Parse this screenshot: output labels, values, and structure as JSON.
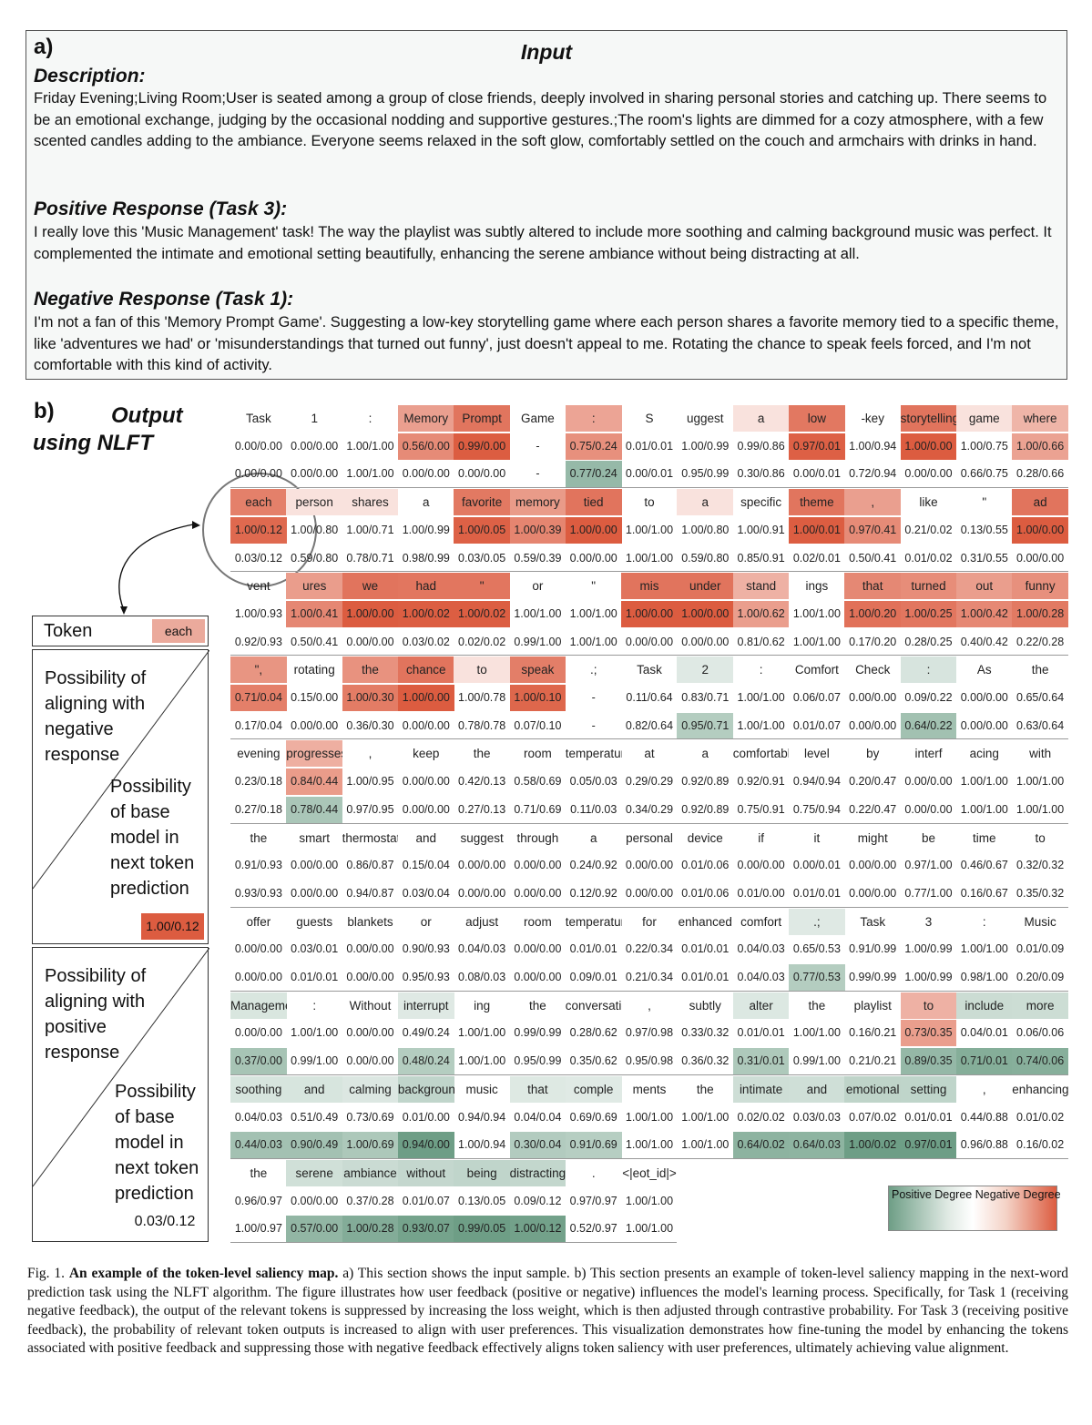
{
  "input_section": {
    "label": "a)",
    "title": "Input",
    "description_heading": "Description:",
    "description_text": "Friday Evening;Living Room;User is seated among a group of close friends, deeply involved in sharing personal stories and catching up. There seems to be an emotional exchange, judging by the occasional nodding and supportive gestures.;The room's lights are dimmed for a cozy atmosphere, with a few scented candles adding to the ambiance. Everyone seems relaxed in the soft glow, comfortably settled on the couch and armchairs with drinks in hand.",
    "positive_heading": "Positive Response (Task 3):",
    "positive_text": "I really love this 'Music Management' task! The way the playlist was subtly altered to include more soothing and calming background music was perfect. It complemented the intimate and emotional setting beautifully, enhancing the serene ambiance without being distracting at all.",
    "negative_heading": "Negative Response (Task 1):",
    "negative_text": "I'm not a fan of this 'Memory Prompt Game'. Suggesting a low-key storytelling game where each person shares a favorite memory tied to a specific theme, like 'adventures we had' or 'misunderstandings that turned out funny', just doesn't appeal to me. Rotating the chance to speak feels forced, and I'm not comfortable with this kind of activity."
  },
  "output_section": {
    "label": "b)",
    "title_line1": "Output",
    "title_line2": "using NLFT"
  },
  "legend": {
    "token_label": "Token",
    "token_example": "each",
    "negative_box_text": [
      "Possibility of",
      "aligning with",
      "negative",
      "response"
    ],
    "base_model_text": [
      "Possibility",
      "of base",
      "model in",
      "next token",
      "prediction"
    ],
    "negative_example_value": "1.00/0.12",
    "positive_box_text": [
      "Possibility of",
      "aligning with",
      "positive",
      "response"
    ],
    "positive_example_value": "0.03/0.12"
  },
  "color_scale": {
    "label": "Positive Degree Negative Degree",
    "positive_color": "#6e9e86",
    "negative_color": "#dc5c40"
  },
  "saliency_blocks": [
    {
      "tokens": [
        "Task",
        "1",
        ":",
        "Memory",
        "Prompt",
        "Game",
        ":",
        "S",
        "uggest",
        "a",
        "low",
        "-key",
        "storytelling",
        "game",
        "where"
      ],
      "neg": [
        "0.00/0.00",
        "0.00/0.00",
        "1.00/1.00",
        "0.56/0.00",
        "0.99/0.00",
        "-",
        "0.75/0.24",
        "0.01/0.01",
        "1.00/0.99",
        "0.99/0.86",
        "0.97/0.01",
        "1.00/0.94",
        "1.00/0.00",
        "1.00/0.75",
        "1.00/0.66"
      ],
      "pos": [
        "0.00/0.00",
        "0.00/0.00",
        "1.00/1.00",
        "0.00/0.00",
        "0.00/0.00",
        "-",
        "0.77/0.24",
        "0.00/0.01",
        "0.95/0.99",
        "0.30/0.86",
        "0.00/0.01",
        "0.72/0.94",
        "0.00/0.00",
        "0.66/0.75",
        "0.28/0.66"
      ]
    },
    {
      "tokens": [
        "each",
        "person",
        "shares",
        "a",
        "favorite",
        "memory",
        "tied",
        "to",
        "a",
        "specific",
        "theme",
        ",",
        "like",
        "\"",
        "ad"
      ],
      "neg": [
        "1.00/0.12",
        "1.00/0.80",
        "1.00/0.71",
        "1.00/0.99",
        "1.00/0.05",
        "1.00/0.39",
        "1.00/0.00",
        "1.00/1.00",
        "1.00/0.80",
        "1.00/0.91",
        "1.00/0.01",
        "0.97/0.41",
        "0.21/0.02",
        "0.13/0.55",
        "1.00/0.00"
      ],
      "pos": [
        "0.03/0.12",
        "0.59/0.80",
        "0.78/0.71",
        "0.98/0.99",
        "0.03/0.05",
        "0.59/0.39",
        "0.00/0.00",
        "1.00/1.00",
        "0.59/0.80",
        "0.85/0.91",
        "0.02/0.01",
        "0.50/0.41",
        "0.01/0.02",
        "0.31/0.55",
        "0.00/0.00"
      ]
    },
    {
      "tokens": [
        "vent",
        "ures",
        "we",
        "had",
        "\"",
        "or",
        "\"",
        "mis",
        "under",
        "stand",
        "ings",
        "that",
        "turned",
        "out",
        "funny"
      ],
      "neg": [
        "1.00/0.93",
        "1.00/0.41",
        "1.00/0.00",
        "1.00/0.02",
        "1.00/0.02",
        "1.00/1.00",
        "1.00/1.00",
        "1.00/0.00",
        "1.00/0.00",
        "1.00/0.62",
        "1.00/1.00",
        "1.00/0.20",
        "1.00/0.25",
        "1.00/0.42",
        "1.00/0.28"
      ],
      "pos": [
        "0.92/0.93",
        "0.50/0.41",
        "0.00/0.00",
        "0.03/0.02",
        "0.02/0.02",
        "0.99/1.00",
        "1.00/1.00",
        "0.00/0.00",
        "0.00/0.00",
        "0.81/0.62",
        "1.00/1.00",
        "0.17/0.20",
        "0.28/0.25",
        "0.40/0.42",
        "0.22/0.28"
      ]
    },
    {
      "tokens": [
        "\",",
        "rotating",
        "the",
        "chance",
        "to",
        "speak",
        ".;",
        "Task",
        "2",
        ":",
        "Comfort",
        "Check",
        ":",
        "As",
        "the"
      ],
      "neg": [
        "0.71/0.04",
        "0.15/0.00",
        "1.00/0.30",
        "1.00/0.00",
        "1.00/0.78",
        "1.00/0.10",
        "-",
        "0.11/0.64",
        "0.83/0.71",
        "1.00/1.00",
        "0.06/0.07",
        "0.00/0.00",
        "0.09/0.22",
        "0.00/0.00",
        "0.65/0.64"
      ],
      "pos": [
        "0.17/0.04",
        "0.00/0.00",
        "0.36/0.30",
        "0.00/0.00",
        "0.78/0.78",
        "0.07/0.10",
        "-",
        "0.82/0.64",
        "0.95/0.71",
        "1.00/1.00",
        "0.01/0.07",
        "0.00/0.00",
        "0.64/0.22",
        "0.00/0.00",
        "0.63/0.64"
      ]
    },
    {
      "tokens": [
        "evening",
        "progresses",
        ",",
        "keep",
        "the",
        "room",
        "temperature",
        "at",
        "a",
        "comfortable",
        "level",
        "by",
        "interf",
        "acing",
        "with"
      ],
      "neg": [
        "0.23/0.18",
        "0.84/0.44",
        "1.00/0.95",
        "0.00/0.00",
        "0.42/0.13",
        "0.58/0.69",
        "0.05/0.03",
        "0.29/0.29",
        "0.92/0.89",
        "0.92/0.91",
        "0.94/0.94",
        "0.20/0.47",
        "0.00/0.00",
        "1.00/1.00",
        "1.00/1.00"
      ],
      "pos": [
        "0.27/0.18",
        "0.78/0.44",
        "0.97/0.95",
        "0.00/0.00",
        "0.27/0.13",
        "0.71/0.69",
        "0.11/0.03",
        "0.34/0.29",
        "0.92/0.89",
        "0.75/0.91",
        "0.75/0.94",
        "0.22/0.47",
        "0.00/0.00",
        "1.00/1.00",
        "1.00/1.00"
      ]
    },
    {
      "tokens": [
        "the",
        "smart",
        "thermostat",
        "and",
        "suggest",
        "through",
        "a",
        "personal",
        "device",
        "if",
        "it",
        "might",
        "be",
        "time",
        "to"
      ],
      "neg": [
        "0.91/0.93",
        "0.00/0.00",
        "0.86/0.87",
        "0.15/0.04",
        "0.00/0.00",
        "0.00/0.00",
        "0.24/0.92",
        "0.00/0.00",
        "0.01/0.06",
        "0.00/0.00",
        "0.00/0.01",
        "0.00/0.00",
        "0.97/1.00",
        "0.46/0.67",
        "0.32/0.32"
      ],
      "pos": [
        "0.93/0.93",
        "0.00/0.00",
        "0.94/0.87",
        "0.03/0.04",
        "0.00/0.00",
        "0.00/0.00",
        "0.12/0.92",
        "0.00/0.00",
        "0.01/0.06",
        "0.01/0.00",
        "0.01/0.01",
        "0.00/0.00",
        "0.77/1.00",
        "0.16/0.67",
        "0.35/0.32"
      ]
    },
    {
      "tokens": [
        "offer",
        "guests",
        "blankets",
        "or",
        "adjust",
        "room",
        "temperature",
        "for",
        "enhanced",
        "comfort",
        ".;",
        "Task",
        "3",
        ":",
        "Music"
      ],
      "neg": [
        "0.00/0.00",
        "0.03/0.01",
        "0.00/0.00",
        "0.90/0.93",
        "0.04/0.03",
        "0.00/0.00",
        "0.01/0.01",
        "0.22/0.34",
        "0.01/0.01",
        "0.04/0.03",
        "0.65/0.53",
        "0.91/0.99",
        "1.00/0.99",
        "1.00/1.00",
        "0.01/0.09"
      ],
      "pos": [
        "0.00/0.00",
        "0.01/0.01",
        "0.00/0.00",
        "0.95/0.93",
        "0.08/0.03",
        "0.00/0.00",
        "0.09/0.01",
        "0.21/0.34",
        "0.01/0.01",
        "0.04/0.03",
        "0.77/0.53",
        "0.99/0.99",
        "1.00/0.99",
        "0.98/1.00",
        "0.20/0.09"
      ]
    },
    {
      "tokens": [
        "Management",
        ":",
        "Without",
        "interrupt",
        "ing",
        "the",
        "conversation",
        ",",
        "subtly",
        "alter",
        "the",
        "playlist",
        "to",
        "include",
        "more"
      ],
      "neg": [
        "0.00/0.00",
        "1.00/1.00",
        "0.00/0.00",
        "0.49/0.24",
        "1.00/1.00",
        "0.99/0.99",
        "0.28/0.62",
        "0.97/0.98",
        "0.33/0.32",
        "0.01/0.01",
        "1.00/1.00",
        "0.16/0.21",
        "0.73/0.35",
        "0.04/0.01",
        "0.06/0.06"
      ],
      "pos": [
        "0.37/0.00",
        "0.99/1.00",
        "0.00/0.00",
        "0.48/0.24",
        "1.00/1.00",
        "0.95/0.99",
        "0.35/0.62",
        "0.95/0.98",
        "0.36/0.32",
        "0.31/0.01",
        "0.99/1.00",
        "0.21/0.21",
        "0.89/0.35",
        "0.71/0.01",
        "0.74/0.06"
      ]
    },
    {
      "tokens": [
        "soothing",
        "and",
        "calming",
        "background",
        "music",
        "that",
        "comple",
        "ments",
        "the",
        "intimate",
        "and",
        "emotional",
        "setting",
        ",",
        "enhancing"
      ],
      "neg": [
        "0.04/0.03",
        "0.51/0.49",
        "0.73/0.69",
        "0.01/0.00",
        "0.94/0.94",
        "0.04/0.04",
        "0.69/0.69",
        "1.00/1.00",
        "1.00/1.00",
        "0.02/0.02",
        "0.03/0.03",
        "0.07/0.02",
        "0.01/0.01",
        "0.44/0.88",
        "0.01/0.02"
      ],
      "pos": [
        "0.44/0.03",
        "0.90/0.49",
        "1.00/0.69",
        "0.94/0.00",
        "1.00/0.94",
        "0.30/0.04",
        "0.91/0.69",
        "1.00/1.00",
        "1.00/1.00",
        "0.64/0.02",
        "0.64/0.03",
        "1.00/0.02",
        "0.97/0.01",
        "0.96/0.88",
        "0.16/0.02"
      ]
    },
    {
      "tokens": [
        "the",
        "serene",
        "ambiance",
        "without",
        "being",
        "distracting",
        ".",
        "<|eot_id|>"
      ],
      "neg": [
        "0.96/0.97",
        "0.00/0.00",
        "0.37/0.28",
        "0.01/0.07",
        "0.13/0.05",
        "0.09/0.12",
        "0.97/0.97",
        "1.00/1.00"
      ],
      "pos": [
        "1.00/0.97",
        "0.57/0.00",
        "1.00/0.28",
        "0.93/0.07",
        "0.99/0.05",
        "1.00/0.12",
        "0.52/0.97",
        "1.00/1.00"
      ]
    }
  ],
  "caption": {
    "fig_label": "Fig. 1.",
    "bold_title": "An example of the token-level saliency map.",
    "text": "a) This section shows the input sample. b) This section presents an example of token-level saliency mapping in the next-word prediction task using the NLFT algorithm. The figure illustrates how user feedback (positive or negative) influences the model's learning process. Specifically, for Task 1 (receiving negative feedback), the output of the relevant tokens is suppressed by increasing the loss weight, which is then adjusted through contrastive probability. For Task 3 (receiving positive feedback), the probability of relevant token outputs is increased to align with user preferences. This visualization demonstrates how fine-tuning the model by enhancing the tokens associated with positive feedback and suppressing those with negative feedback effectively aligns token saliency with user preferences, ultimately achieving value alignment."
  }
}
